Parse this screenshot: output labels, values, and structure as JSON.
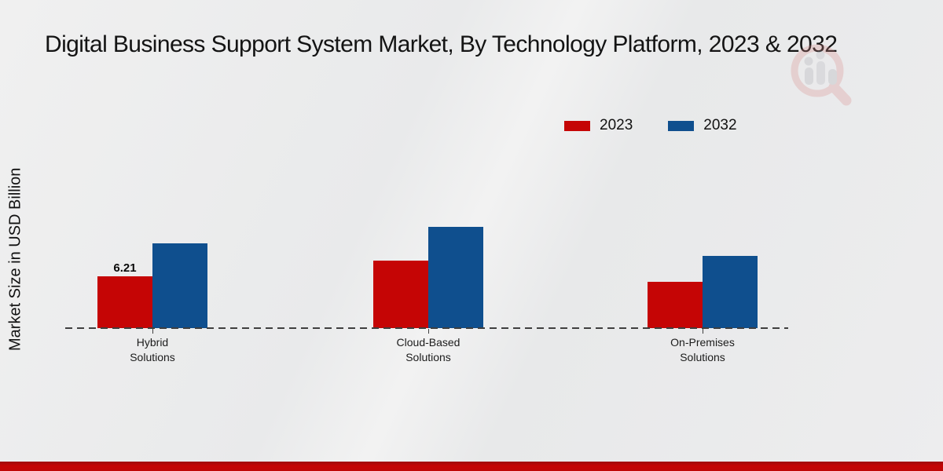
{
  "chart_data": {
    "type": "bar",
    "title": "Digital Business Support System Market, By Technology Platform, 2023 & 2032",
    "ylabel": "Market Size in USD Billion",
    "xlabel": "",
    "categories": [
      "Hybrid Solutions",
      "Cloud-Based Solutions",
      "On-Premises Solutions"
    ],
    "series": [
      {
        "name": "2023",
        "color": "#c50505",
        "values": [
          6.21,
          8.1,
          5.5
        ]
      },
      {
        "name": "2032",
        "color": "#0f4f8e",
        "values": [
          10.1,
          12.1,
          8.6
        ]
      }
    ],
    "value_labels": [
      {
        "series": "2023",
        "category": "Hybrid Solutions",
        "text": "6.21"
      }
    ],
    "ylim": [
      0,
      13
    ],
    "grid": false,
    "legend_position": "top-right",
    "baseline_style": "dashed",
    "axis_ticks_shown": false
  },
  "watermark": {
    "name": "magnifier-bar-chart-logo",
    "accent_color": "#d94f4f",
    "bar_color": "#9a9aa0"
  }
}
